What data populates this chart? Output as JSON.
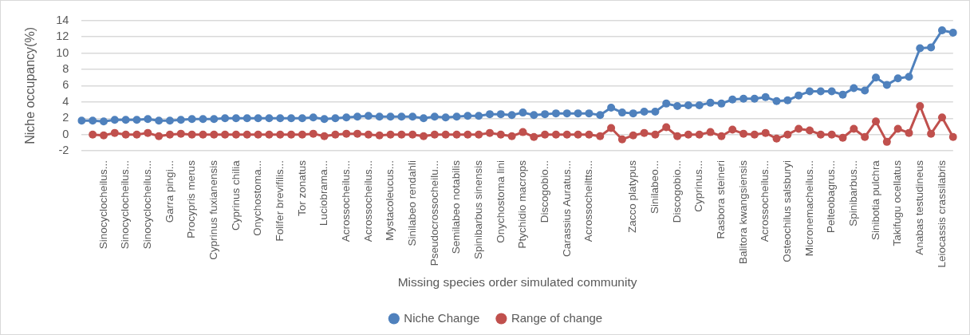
{
  "chart_data": {
    "type": "line",
    "xlabel": "Missing species order simulated community",
    "ylabel": "Niche occupancy(%)",
    "categories": [
      null,
      null,
      "Sinocyclocheilus...",
      null,
      "Sinocyclocheilus...",
      null,
      "Sinocyclocheilus...",
      null,
      "Garra pingi...",
      null,
      "Procypris merus",
      null,
      "Cyprinus fuxianensis",
      null,
      "Cyprinus chilia",
      null,
      "Onychostoma...",
      null,
      "Folifer brevifilis...",
      null,
      "Tor zonatus",
      null,
      "Luciobrama...",
      null,
      "Acrossocheilus...",
      null,
      "Acrossocheilus...",
      null,
      "Mystacoleucus...",
      null,
      "Sinilabeo rendahli",
      null,
      "Pseudocrossocheilu...",
      null,
      "Semilabeo notabilis",
      null,
      "Spinibarbus sinensis",
      null,
      "Onychostoma lini",
      null,
      "Ptychidio macrops",
      null,
      "Discogobio...",
      null,
      "Carassius Auratus...",
      null,
      "Acrossocheiltts...",
      null,
      null,
      null,
      "Zacco platypus",
      null,
      "Sinilabeo...",
      null,
      "Discogobio...",
      null,
      "Cyprinus...",
      null,
      "Rasbora steineri",
      null,
      "Balitora kwangsiensis",
      null,
      "Acrossocheilus...",
      null,
      "Osteochilus salsburyi",
      null,
      "Micronemacheilus...",
      null,
      "Pelteobagrus...",
      null,
      "Spinibarbus...",
      null,
      "Sinibotia pulchra",
      null,
      "Takifugu ocellatus",
      null,
      "Anabas testudineus",
      null,
      "Leiocassis crassilabris",
      null
    ],
    "series": [
      {
        "name": "Niche Change",
        "color": "#4f81bd",
        "values": [
          1.7,
          1.7,
          1.6,
          1.8,
          1.8,
          1.8,
          1.9,
          1.7,
          1.7,
          1.8,
          1.9,
          1.9,
          1.9,
          2.0,
          2.0,
          2.0,
          2.0,
          2.0,
          2.0,
          2.0,
          2.0,
          2.1,
          1.9,
          2.0,
          2.1,
          2.2,
          2.3,
          2.2,
          2.2,
          2.2,
          2.2,
          2.0,
          2.2,
          2.1,
          2.2,
          2.3,
          2.3,
          2.5,
          2.5,
          2.4,
          2.7,
          2.4,
          2.5,
          2.6,
          2.6,
          2.6,
          2.6,
          2.4,
          3.3,
          2.7,
          2.6,
          2.8,
          2.8,
          3.8,
          3.5,
          3.6,
          3.6,
          3.9,
          3.8,
          4.3,
          4.4,
          4.4,
          4.6,
          4.1,
          4.2,
          4.8,
          5.3,
          5.3,
          5.3,
          4.9,
          5.7,
          5.4,
          7.0,
          6.1,
          6.9,
          7.1,
          10.6,
          10.7,
          12.8,
          12.5
        ]
      },
      {
        "name": "Range of change",
        "color": "#c0504d",
        "values": [
          null,
          0,
          -0.1,
          0.2,
          0,
          0,
          0.2,
          -0.2,
          0,
          0.1,
          0,
          0,
          0,
          0,
          0,
          0,
          0,
          0,
          0,
          0,
          0,
          0.1,
          -0.2,
          0,
          0.1,
          0.1,
          0,
          -0.1,
          0,
          0,
          0,
          -0.2,
          0,
          0,
          0,
          0,
          0,
          0.2,
          0,
          -0.2,
          0.3,
          -0.3,
          0,
          0,
          0,
          0,
          0,
          -0.2,
          0.8,
          -0.6,
          -0.1,
          0.2,
          0,
          0.9,
          -0.2,
          0,
          0,
          0.3,
          -0.2,
          0.6,
          0.1,
          0,
          0.2,
          -0.5,
          0,
          0.7,
          0.5,
          0,
          0,
          -0.4,
          0.7,
          -0.3,
          1.6,
          -0.9,
          0.7,
          0.2,
          3.5,
          0.1,
          2.1,
          -0.3
        ]
      }
    ],
    "ylim": [
      -2,
      14
    ],
    "yticks": [
      -2,
      0,
      2,
      4,
      6,
      8,
      10,
      12,
      14
    ],
    "grid": "y",
    "legend": "bottom",
    "marker": "circle",
    "line_style": "solid"
  }
}
